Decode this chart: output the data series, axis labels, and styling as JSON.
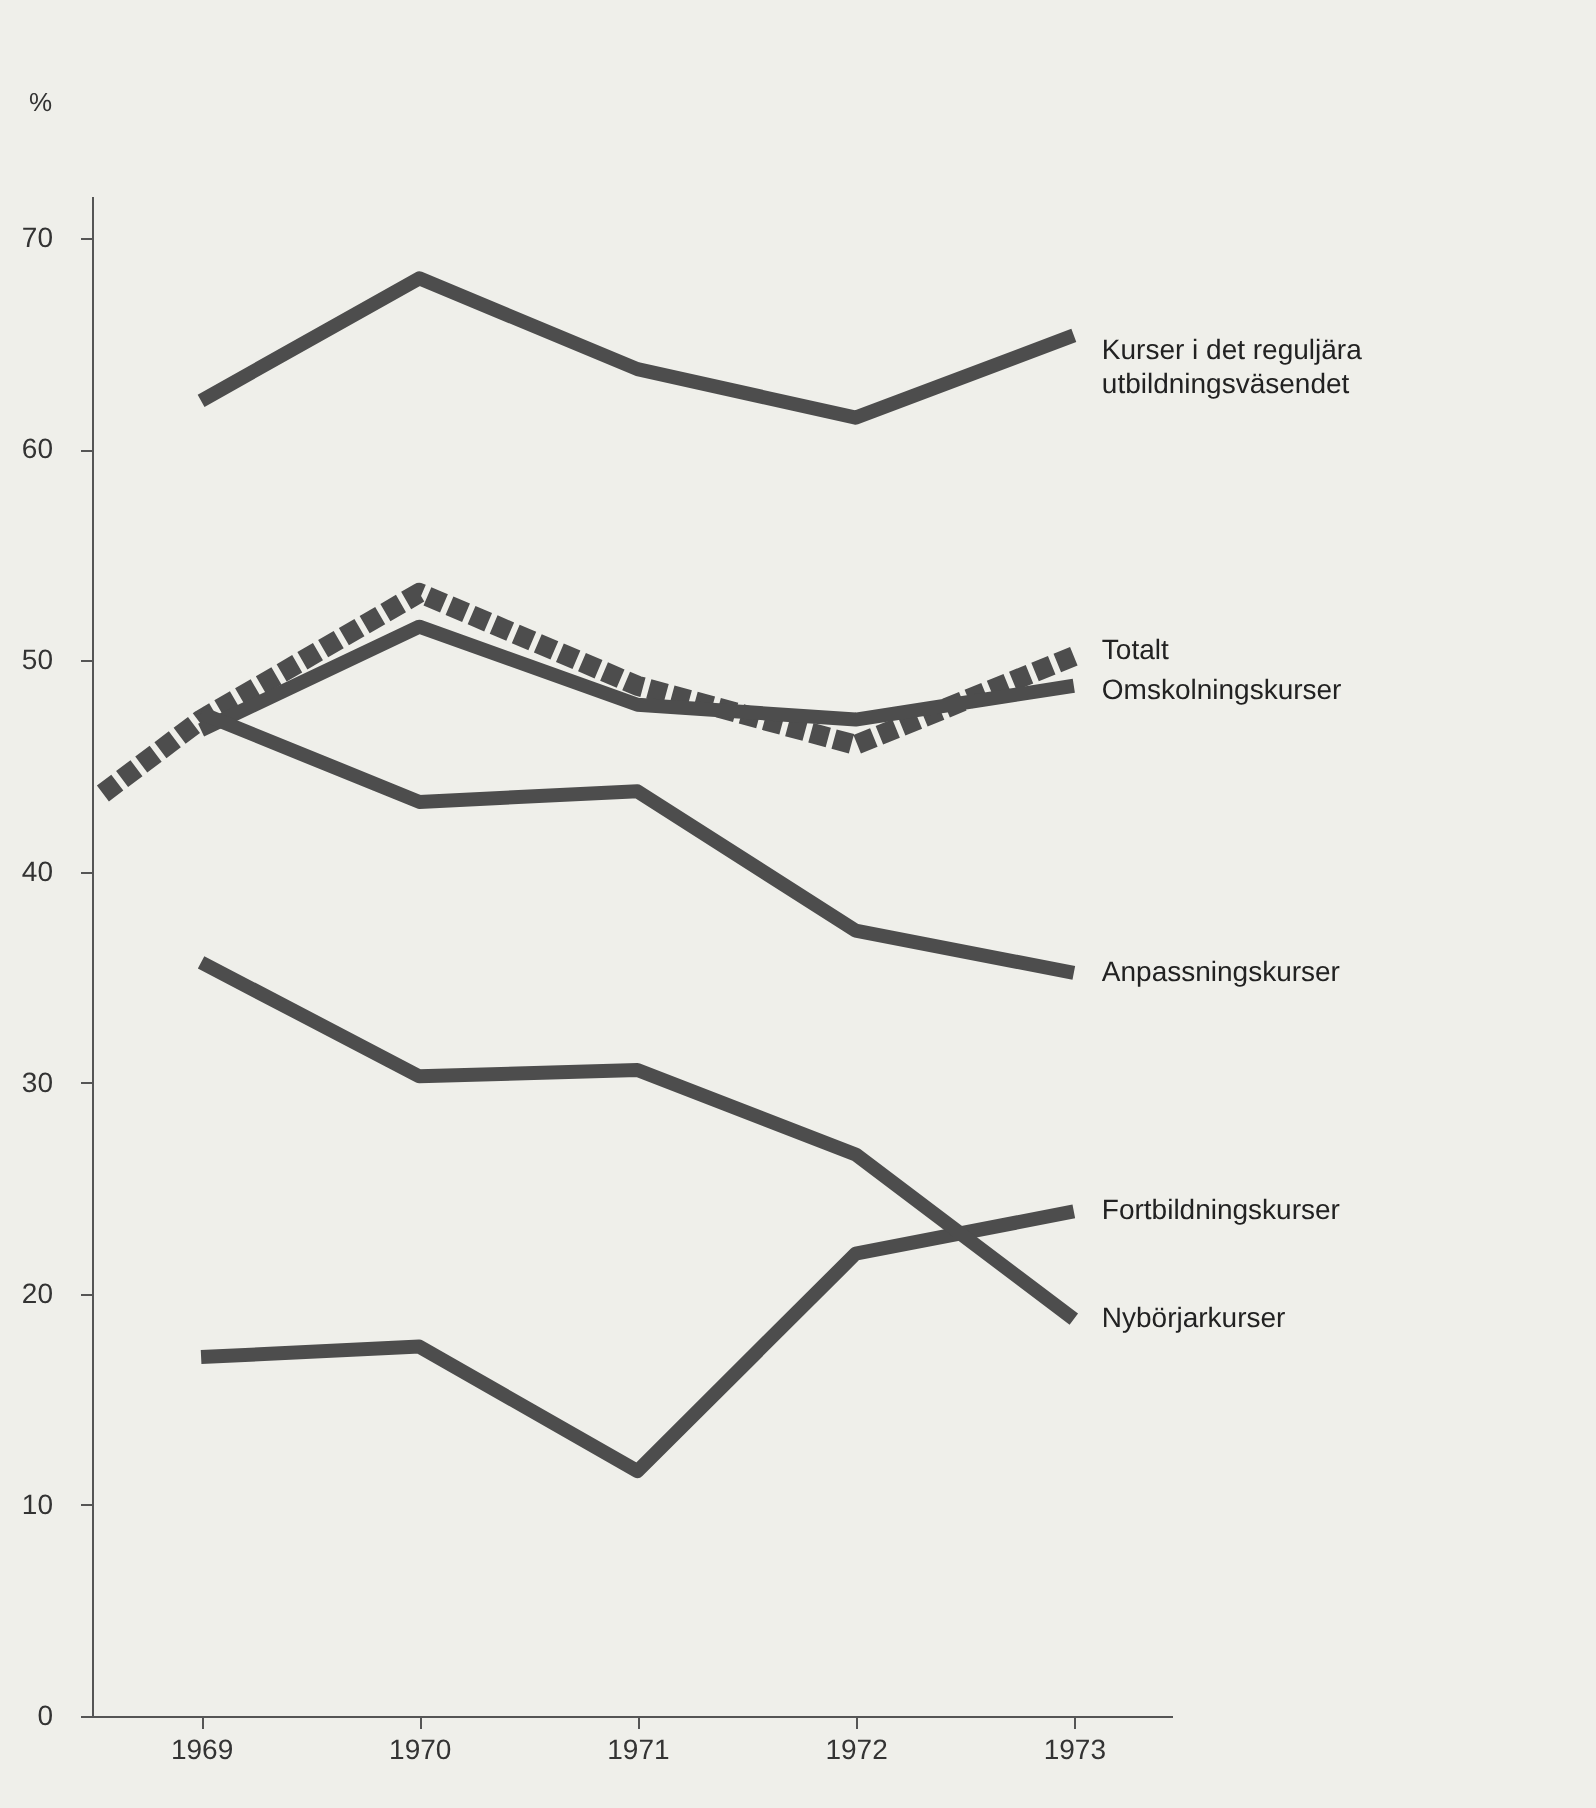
{
  "chart_data": {
    "type": "line",
    "ylabel": "%",
    "x": [
      1969,
      1970,
      1971,
      1972,
      1973
    ],
    "xlim": [
      1968.5,
      1973.45
    ],
    "xticks": [
      1969,
      1970,
      1971,
      1972,
      1973
    ],
    "ylim": [
      0,
      72
    ],
    "yticks": [
      0,
      10,
      20,
      30,
      40,
      50,
      60,
      70
    ],
    "grid": false,
    "line_style": "solid",
    "series": [
      {
        "name": "Kurser i det reguljära utbildningsväsendet",
        "color": "#4d4d4d",
        "values": [
          62.3,
          68.1,
          63.8,
          61.5,
          65.4
        ]
      },
      {
        "name": "Totalt",
        "color": "#4d4d4d",
        "line_style": "dashed",
        "x": [
          1968.55,
          1969,
          1970,
          1971,
          1972,
          1973
        ],
        "values": [
          43.7,
          47.2,
          53.2,
          48.8,
          46.0,
          50.2
        ]
      },
      {
        "name": "Omskolningskurser",
        "color": "#4d4d4d",
        "values": [
          46.7,
          51.6,
          47.9,
          47.2,
          48.8
        ]
      },
      {
        "name": "Anpassningskurser",
        "color": "#4d4d4d",
        "values": [
          47.5,
          43.3,
          43.8,
          37.2,
          35.2
        ]
      },
      {
        "name": "Fortbildningskurser",
        "color": "#4d4d4d",
        "values": [
          17.0,
          17.5,
          11.6,
          21.9,
          23.9
        ]
      },
      {
        "name": "Nybörjarkurser",
        "color": "#4d4d4d",
        "values": [
          35.7,
          30.3,
          30.6,
          26.6,
          18.8
        ]
      }
    ]
  }
}
